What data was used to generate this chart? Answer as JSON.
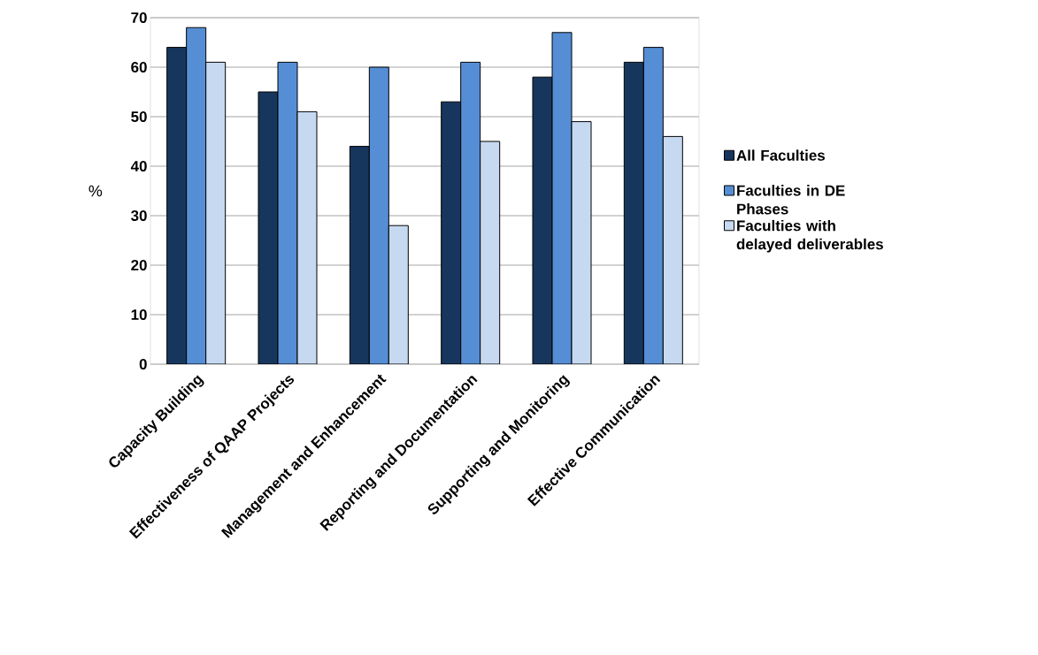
{
  "chart_data": {
    "type": "bar",
    "ylabel": "%",
    "categories": [
      "Capacity  Building",
      "Effectiveness  of QAAP Projects",
      "Management and Enhancement",
      "Reporting and Documentation",
      "Supporting and Monitoring",
      "Effective Communication"
    ],
    "series": [
      {
        "name": "All Faculties",
        "color": "#17365d",
        "values": [
          64,
          55,
          44,
          53,
          58,
          61
        ]
      },
      {
        "name": "Faculties in DE Phases",
        "color": "#558ed5",
        "values": [
          68,
          61,
          60,
          61,
          67,
          64
        ]
      },
      {
        "name": "Faculties with delayed deliverables",
        "color": "#c6d9f1",
        "values": [
          61,
          51,
          28,
          45,
          49,
          46
        ]
      }
    ],
    "ylim": [
      0,
      70
    ],
    "yticks": [
      0,
      10,
      20,
      30,
      40,
      50,
      60,
      70
    ],
    "grid": "y",
    "legend": "right"
  }
}
